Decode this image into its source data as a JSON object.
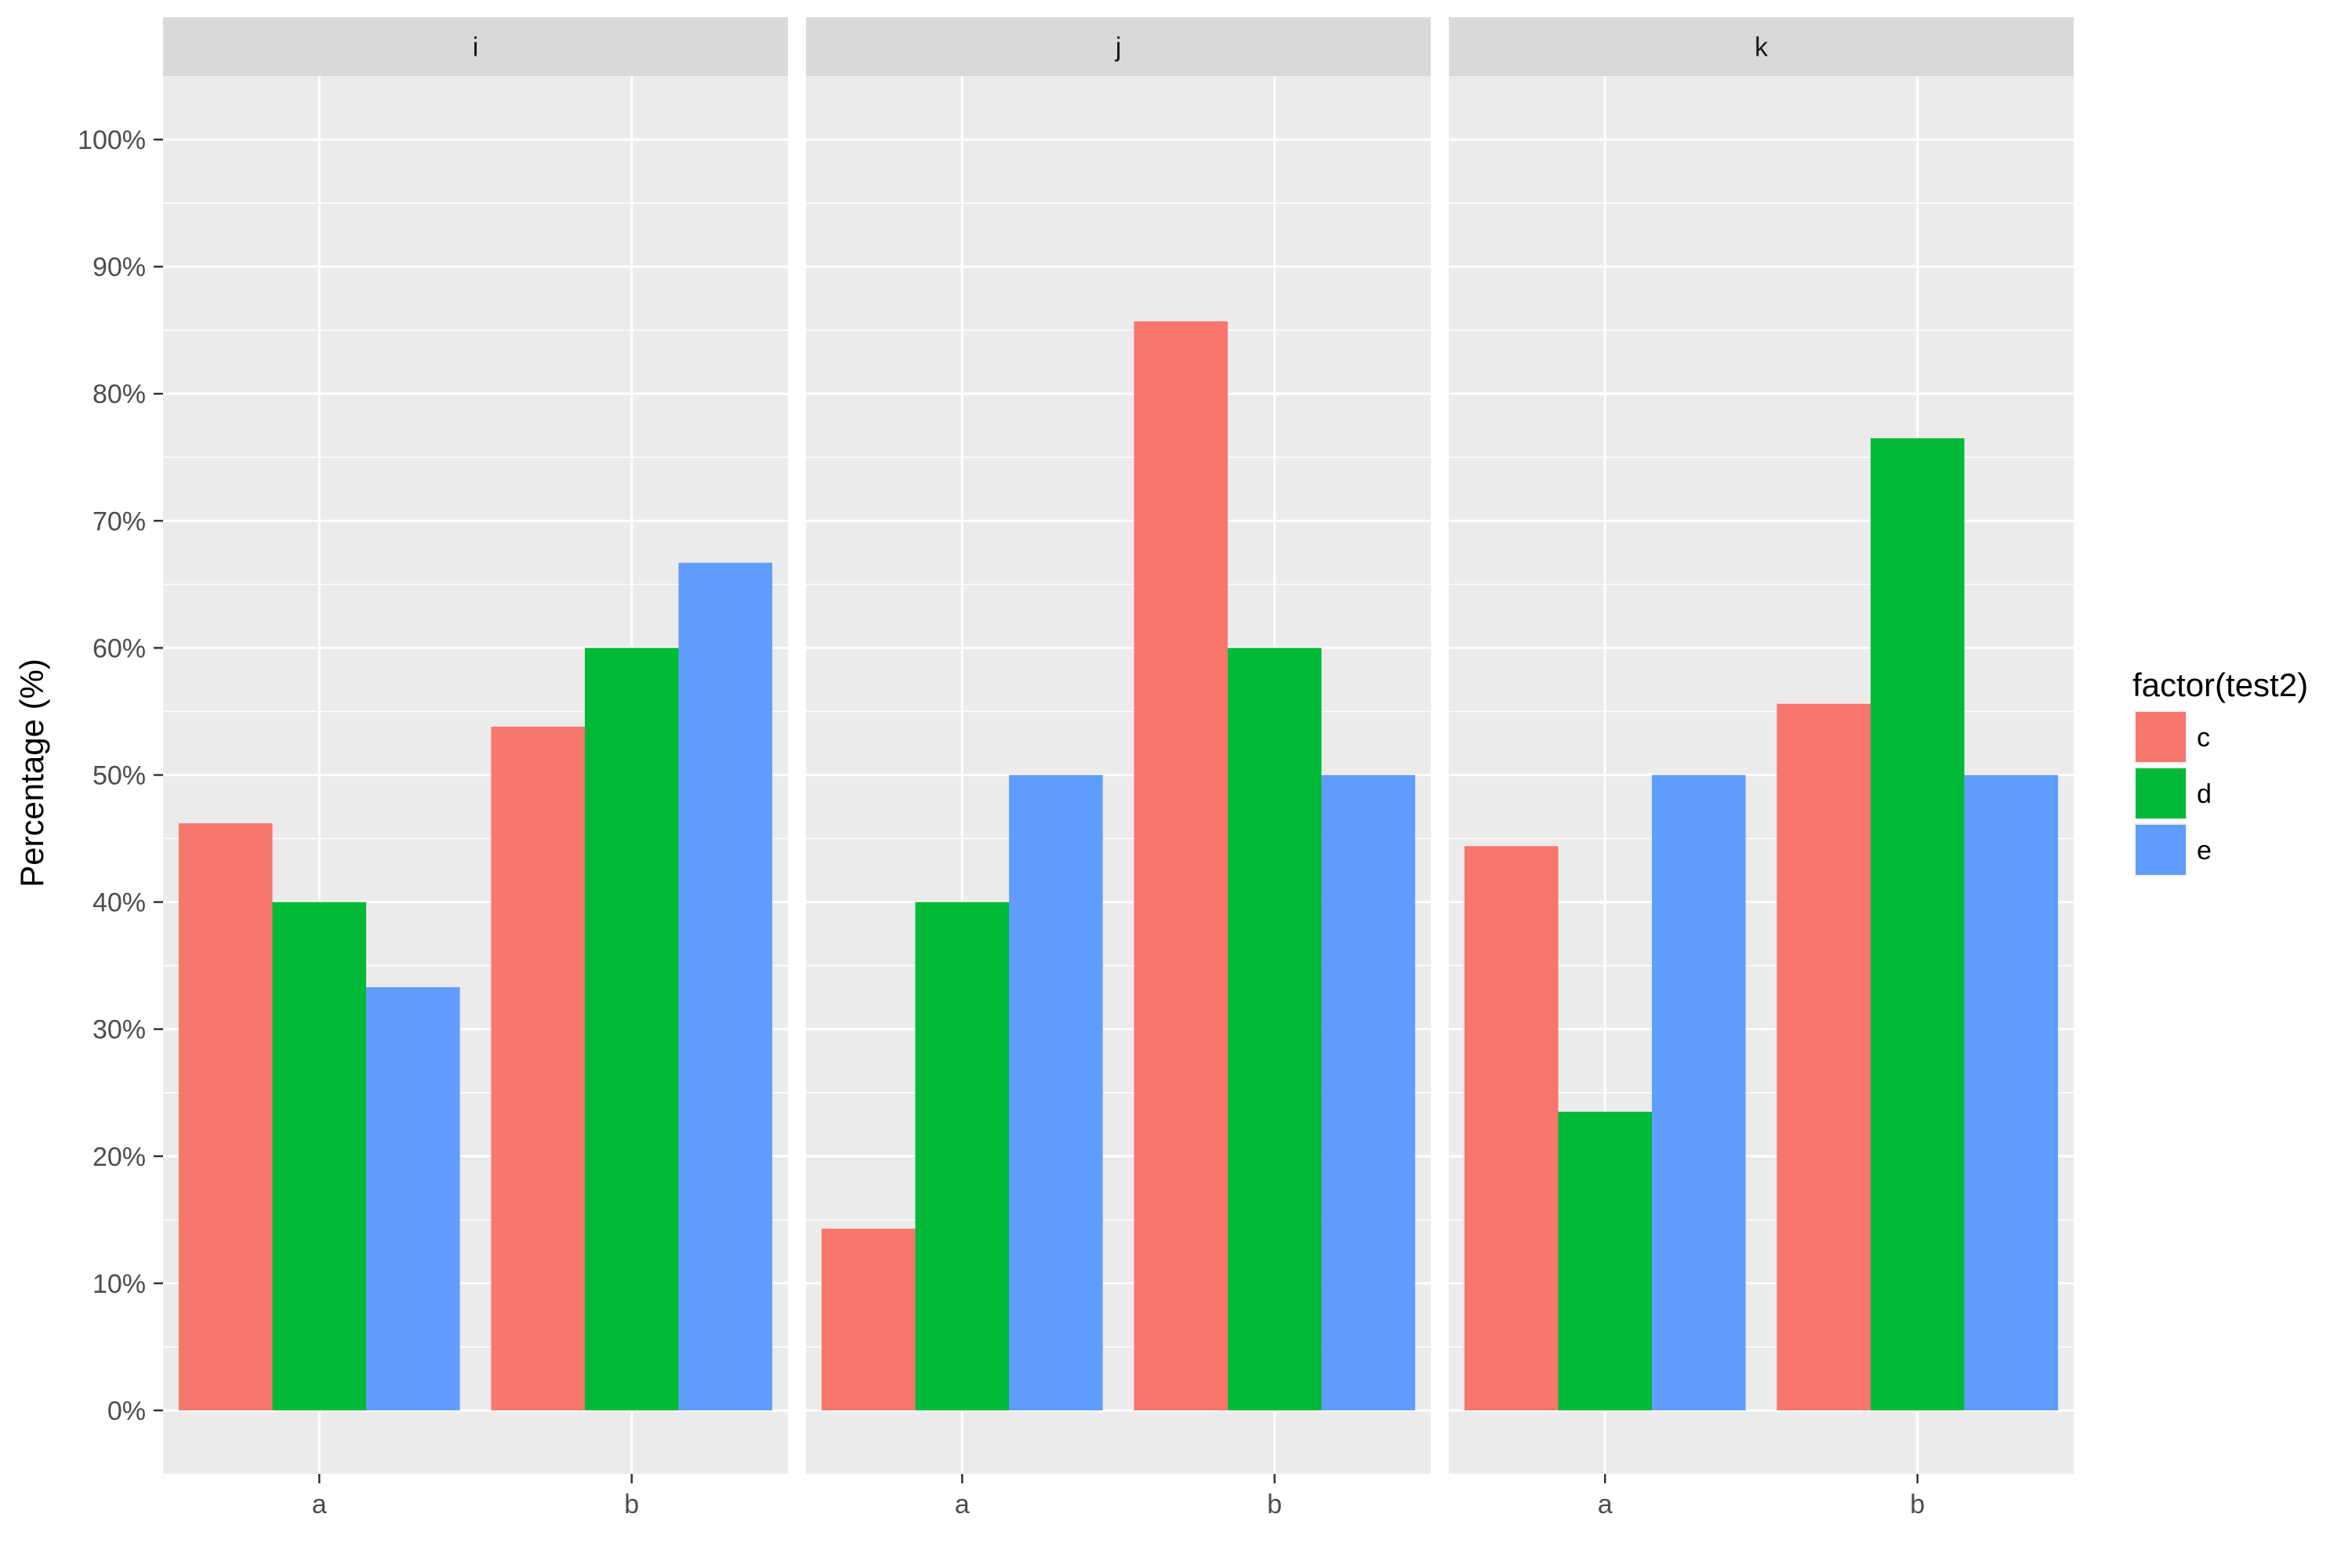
{
  "chart_data": {
    "type": "bar",
    "ylabel": "Percentage (%)",
    "xlabel": "",
    "y_ticks": [
      "0%",
      "10%",
      "20%",
      "30%",
      "40%",
      "50%",
      "60%",
      "70%",
      "80%",
      "90%",
      "100%"
    ],
    "ylim": [
      -0.05,
      1.05
    ],
    "categories": [
      "a",
      "b"
    ],
    "facets": [
      {
        "label": "i",
        "series": [
          {
            "name": "c",
            "values": [
              0.462,
              0.538
            ]
          },
          {
            "name": "d",
            "values": [
              0.4,
              0.6
            ]
          },
          {
            "name": "e",
            "values": [
              0.333,
              0.667
            ]
          }
        ]
      },
      {
        "label": "j",
        "series": [
          {
            "name": "c",
            "values": [
              0.143,
              0.857
            ]
          },
          {
            "name": "d",
            "values": [
              0.4,
              0.6
            ]
          },
          {
            "name": "e",
            "values": [
              0.5,
              0.5
            ]
          }
        ]
      },
      {
        "label": "k",
        "series": [
          {
            "name": "c",
            "values": [
              0.444,
              0.556
            ]
          },
          {
            "name": "d",
            "values": [
              0.235,
              0.765
            ]
          },
          {
            "name": "e",
            "values": [
              0.5,
              0.5
            ]
          }
        ]
      }
    ],
    "legend": {
      "title": "factor(test2)",
      "placement": "right",
      "entries": [
        {
          "name": "c",
          "color": "#F8766D"
        },
        {
          "name": "d",
          "color": "#00BA38"
        },
        {
          "name": "e",
          "color": "#619CFF"
        }
      ]
    },
    "colors": {
      "panel_bg": "#EBEBEB",
      "strip_bg": "#D9D9D9",
      "grid": "#FFFFFF",
      "tick": "#333333"
    },
    "grid": true
  }
}
